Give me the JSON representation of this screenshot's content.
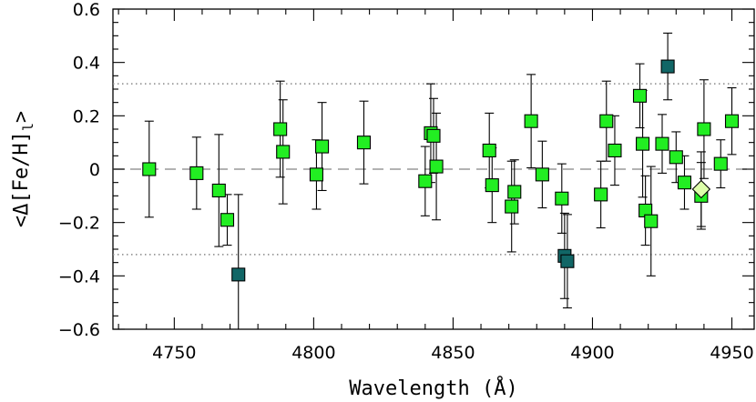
{
  "chart_data": {
    "type": "scatter",
    "xlabel": "Wavelength (Å)",
    "ylabel_parts": [
      "<Δ[Fe/H]",
      "l",
      ">"
    ],
    "xlim": [
      4728,
      4958
    ],
    "ylim": [
      -0.6,
      0.6
    ],
    "x_ticks": [
      4750,
      4800,
      4850,
      4900,
      4950
    ],
    "y_ticks": [
      -0.6,
      -0.4,
      -0.2,
      0,
      0.2,
      0.4,
      0.6
    ],
    "x_tick_labels": [
      "4750",
      "4800",
      "4850",
      "4900",
      "4950"
    ],
    "y_tick_labels": [
      "−0.6",
      "−0.4",
      "−0.2",
      "0",
      "0.2",
      "0.4",
      "0.6"
    ],
    "reference_lines": [
      {
        "y": 0,
        "style": "dashed"
      },
      {
        "y": 0.32,
        "style": "dotted"
      },
      {
        "y": -0.32,
        "style": "dotted"
      }
    ],
    "colors": {
      "green": "#22ee22",
      "teal": "#116666",
      "pale": "#ddffaa",
      "line_dashed": "#999999",
      "line_dotted": "#888888"
    },
    "series": [
      {
        "marker": "square",
        "color": "green",
        "points": [
          {
            "x": 4741,
            "y": 0.0,
            "err": 0.18
          },
          {
            "x": 4758,
            "y": -0.015,
            "err": 0.135
          },
          {
            "x": 4766,
            "y": -0.08,
            "err": 0.21
          },
          {
            "x": 4769,
            "y": -0.19,
            "err": 0.095
          },
          {
            "x": 4788,
            "y": 0.15,
            "err": 0.18
          },
          {
            "x": 4789,
            "y": 0.065,
            "err": 0.195
          },
          {
            "x": 4801,
            "y": -0.02,
            "err": 0.13
          },
          {
            "x": 4803,
            "y": 0.085,
            "err": 0.165
          },
          {
            "x": 4818,
            "y": 0.1,
            "err": 0.155
          },
          {
            "x": 4840,
            "y": -0.045,
            "err": 0.13
          },
          {
            "x": 4842,
            "y": 0.135,
            "err": 0.185
          },
          {
            "x": 4843,
            "y": 0.125,
            "err": 0.14
          },
          {
            "x": 4844,
            "y": 0.01,
            "err": 0.2
          },
          {
            "x": 4863,
            "y": 0.07,
            "err": 0.14
          },
          {
            "x": 4864,
            "y": -0.06,
            "err": 0.14
          },
          {
            "x": 4871,
            "y": -0.14,
            "err": 0.17
          },
          {
            "x": 4872,
            "y": -0.085,
            "err": 0.12
          },
          {
            "x": 4878,
            "y": 0.18,
            "err": 0.175
          },
          {
            "x": 4882,
            "y": -0.02,
            "err": 0.125
          },
          {
            "x": 4889,
            "y": -0.11,
            "err": 0.13
          },
          {
            "x": 4903,
            "y": -0.095,
            "err": 0.125
          },
          {
            "x": 4905,
            "y": 0.18,
            "err": 0.15
          },
          {
            "x": 4908,
            "y": 0.07,
            "err": 0.13
          },
          {
            "x": 4917,
            "y": 0.275,
            "err": 0.12
          },
          {
            "x": 4918,
            "y": 0.095,
            "err": 0.2
          },
          {
            "x": 4919,
            "y": -0.155,
            "err": 0.13
          },
          {
            "x": 4921,
            "y": -0.195,
            "err": 0.205
          },
          {
            "x": 4925,
            "y": 0.095,
            "err": 0.11
          },
          {
            "x": 4930,
            "y": 0.045,
            "err": 0.095
          },
          {
            "x": 4933,
            "y": -0.05,
            "err": 0.1
          },
          {
            "x": 4939,
            "y": -0.1,
            "err": 0.125
          },
          {
            "x": 4940,
            "y": 0.15,
            "err": 0.185
          },
          {
            "x": 4946,
            "y": 0.02,
            "err": 0.09
          },
          {
            "x": 4950,
            "y": 0.18,
            "err": 0.125
          }
        ]
      },
      {
        "marker": "square",
        "color": "teal",
        "points": [
          {
            "x": 4773,
            "y": -0.395,
            "err": 0.3
          },
          {
            "x": 4890,
            "y": -0.325,
            "err": 0.16
          },
          {
            "x": 4891,
            "y": -0.345,
            "err": 0.175
          },
          {
            "x": 4927,
            "y": 0.385,
            "err": 0.125
          }
        ]
      },
      {
        "marker": "diamond",
        "color": "pale",
        "points": [
          {
            "x": 4939,
            "y": -0.075,
            "err": 0.14
          }
        ]
      }
    ]
  }
}
